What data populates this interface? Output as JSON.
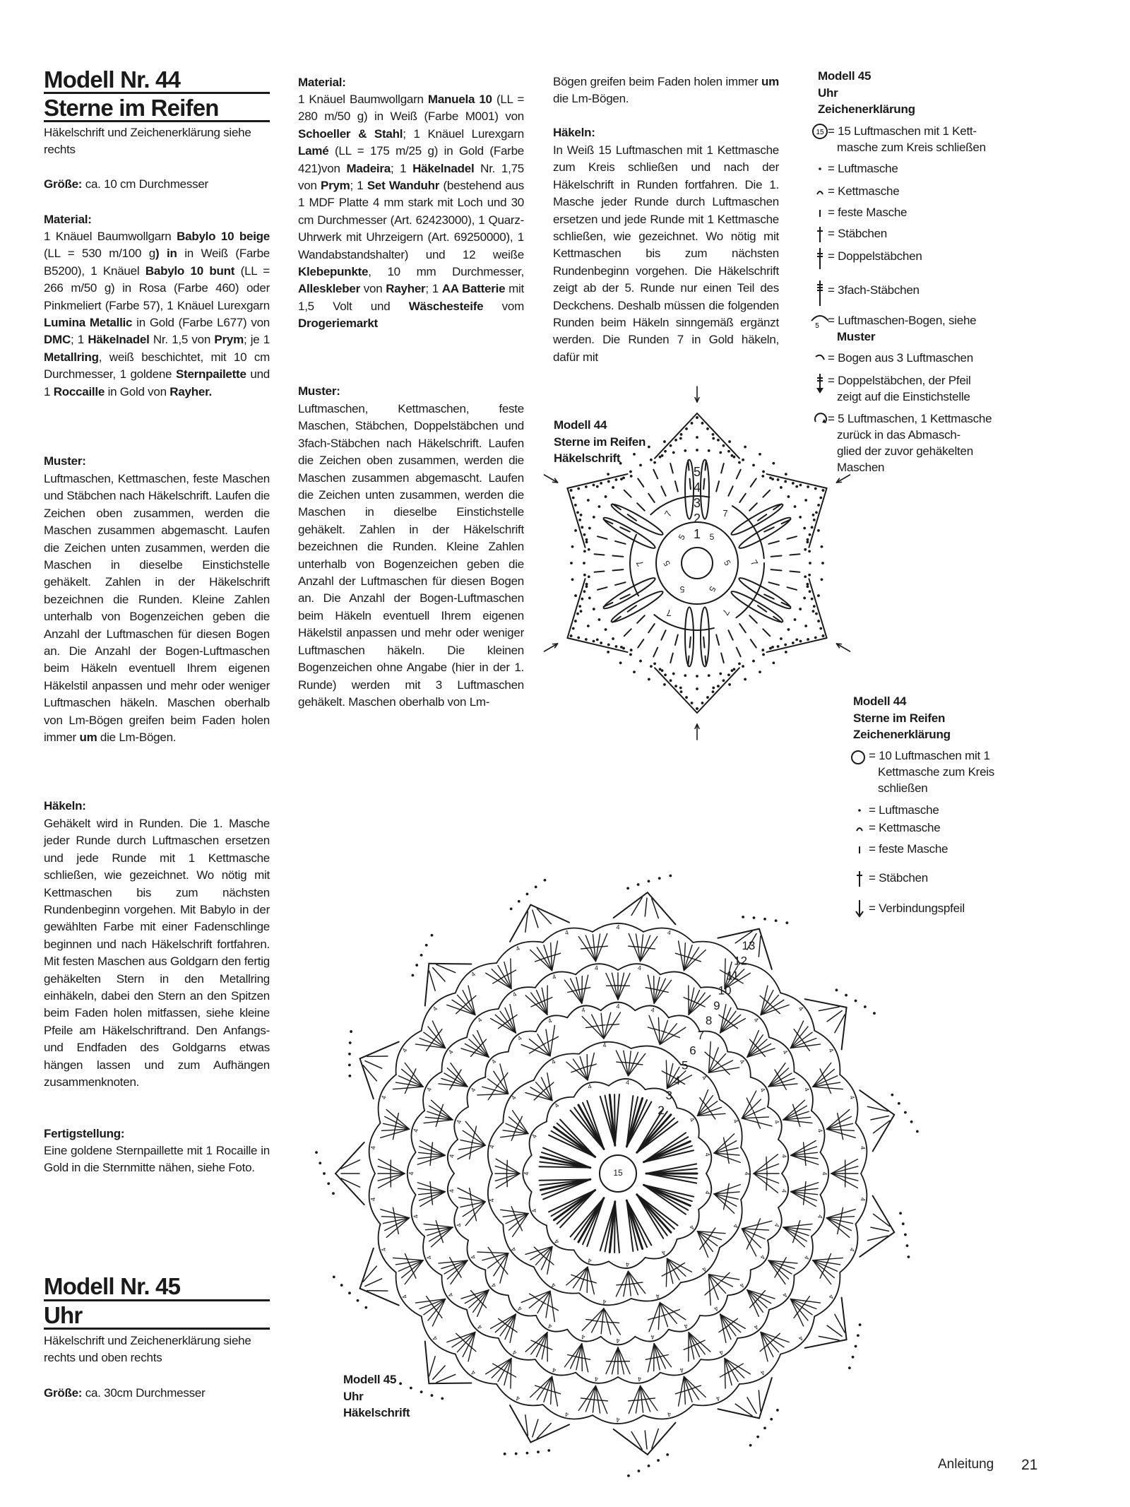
{
  "model44": {
    "title_number": "Modell Nr. 44",
    "title_name": "Sterne im Reifen",
    "intro": "Häkelschrift und Zeichenerklärung siehe rechts",
    "size_label": "Größe:",
    "size_value": " ca. 10 cm Durchmesser",
    "material_heading": "Material:",
    "material": [
      {
        "t": "1 Knäuel Baumwollgarn "
      },
      {
        "t": "Babylo 10 beige",
        "b": true
      },
      {
        "t": " (LL = 530 m/100 g"
      },
      {
        "t": ") in",
        "b": true
      },
      {
        "t": " in Weiß (Farbe B5200), 1 Knäuel "
      },
      {
        "t": "Babylo 10 bunt",
        "b": true
      },
      {
        "t": " (LL = 266 m/50 g) in Rosa (Farbe 460) oder Pinkmeliert (Farbe 57), 1 Knäuel Lurexgarn "
      },
      {
        "t": "Lumina Metallic",
        "b": true
      },
      {
        "t": " in Gold (Farbe L677) von "
      },
      {
        "t": "DMC",
        "b": true
      },
      {
        "t": "; 1 "
      },
      {
        "t": "Häkelnadel",
        "b": true
      },
      {
        "t": " Nr. 1,5 von "
      },
      {
        "t": "Prym",
        "b": true
      },
      {
        "t": "; je 1 "
      },
      {
        "t": "Metallring",
        "b": true
      },
      {
        "t": ", weiß beschichtet, mit 10 cm Durchmesser, 1 goldene "
      },
      {
        "t": "Sternpailette",
        "b": true
      },
      {
        "t": " und 1 "
      },
      {
        "t": "Roccaille",
        "b": true
      },
      {
        "t": " in Gold von "
      },
      {
        "t": "Rayher.",
        "b": true
      }
    ],
    "pattern_heading": "Muster:",
    "pattern": [
      {
        "t": "Luftmaschen, Kettmaschen, feste Maschen und Stäbchen nach Häkelschrift. Laufen die Zeichen oben zusammen, werden die Maschen zusammen abgemascht. Laufen die Zeichen unten zusammen, werden die Maschen in dieselbe Einstichstelle gehäkelt. Zahlen in der Häkelschrift bezeichnen die Runden. Kleine Zahlen unterhalb von Bogenzeichen geben die Anzahl der Luftmaschen für diesen Bogen an. Die Anzahl der Bogen-Luftmaschen beim Häkeln eventuell Ihrem eigenen Häkelstil anpassen und mehr oder weniger Luftmaschen häkeln. Maschen oberhalb von Lm-Bögen greifen beim Faden holen immer "
      },
      {
        "t": "um",
        "b": true
      },
      {
        "t": " die Lm-Bögen."
      }
    ],
    "crochet_heading": "Häkeln:",
    "crochet": [
      {
        "t": "Gehäkelt wird in Runden. Die 1. Masche jeder Runde durch Luftmaschen ersetzen und jede Runde mit 1 Kettmasche schließen, wie gezeichnet. Wo nötig mit Kettmaschen bis zum nächsten Rundenbeginn vorgehen. Mit Babylo in der gewählten Farbe mit einer Fadenschlinge beginnen und nach Häkelschrift fortfahren. Mit festen Maschen aus Goldgarn den fertig gehäkelten Stern in den Metallring einhäkeln, dabei den Stern an den Spitzen beim Faden holen mitfassen, siehe kleine Pfeile am Häkelschriftrand. Den Anfangs- und Endfaden des Goldgarns etwas hängen lassen und zum Aufhängen zusammenknoten."
      }
    ],
    "finishing_heading": "Fertigstellung:",
    "finishing": [
      {
        "t": "Eine goldene Sternpaillette mit 1 Rocaille in Gold in die Sternmitte nähen, siehe Foto."
      }
    ],
    "diagram_label": [
      "Modell 44",
      "Sterne im Reifen",
      "Häkelschrift"
    ],
    "diagram_round_labels": [
      "1",
      "2",
      "3",
      "4",
      "5"
    ],
    "diagram_arc_labels": [
      "5",
      "7"
    ],
    "legend_title": [
      "Modell 44",
      "Sterne im Reifen",
      "Zeichenerklärung"
    ],
    "legend": [
      {
        "icon": "ring-icon",
        "lines": [
          {
            "t": "= 10 Luftmaschen mit 1"
          },
          {
            "t": "Kettmasche zum Kreis"
          },
          {
            "t": "schließen"
          }
        ]
      },
      {
        "icon": "chain-dot-icon",
        "lines": [
          {
            "t": "= Luftmasche"
          }
        ]
      },
      {
        "icon": "slip-stitch-icon",
        "lines": [
          {
            "t": "= Kettmasche"
          }
        ]
      },
      {
        "icon": "single-crochet-icon",
        "lines": [
          {
            "t": "= feste Masche"
          }
        ]
      },
      {
        "icon": "double-crochet-icon",
        "lines": [
          {
            "t": "= Stäbchen"
          }
        ]
      },
      {
        "icon": "down-arrow-icon",
        "lines": [
          {
            "t": "= Verbindungspfeil"
          }
        ]
      }
    ]
  },
  "model45": {
    "title_number": "Modell Nr. 45",
    "title_name": "Uhr",
    "intro": "Häkelschrift und Zeichenerklärung siehe rechts und oben rechts",
    "size_label": "Größe:",
    "size_value": " ca. 30cm Durchmesser",
    "material_heading": "Material:",
    "material": [
      {
        "t": "1 Knäuel Baumwollgarn "
      },
      {
        "t": "Manuela 10",
        "b": true
      },
      {
        "t": " (LL = 280 m/50 g) in Weiß (Farbe M001) von "
      },
      {
        "t": "Schoeller & Stahl",
        "b": true
      },
      {
        "t": "; 1 Knäuel Lurexgarn "
      },
      {
        "t": "Lamé",
        "b": true
      },
      {
        "t": " (LL = 175 m/25 g) in Gold (Farbe 421)von "
      },
      {
        "t": "Madeira",
        "b": true
      },
      {
        "t": "; 1 "
      },
      {
        "t": "Häkelnadel",
        "b": true
      },
      {
        "t": " Nr. 1,75 von "
      },
      {
        "t": "Prym",
        "b": true
      },
      {
        "t": "; 1 "
      },
      {
        "t": "Set Wanduhr",
        "b": true
      },
      {
        "t": " (bestehend aus 1 MDF Platte 4 mm stark mit Loch und 30 cm Durchmesser (Art. 62423000), 1 Quarz-Uhrwerk mit Uhrzeigern (Art. 69250000), 1 Wandabstandshalter) und 12 weiße "
      },
      {
        "t": "Klebepunkte",
        "b": true
      },
      {
        "t": ", 10 mm Durchmesser, "
      },
      {
        "t": "Alleskleber",
        "b": true
      },
      {
        "t": " von "
      },
      {
        "t": "Rayher",
        "b": true
      },
      {
        "t": "; 1 "
      },
      {
        "t": "AA Batterie",
        "b": true
      },
      {
        "t": " mit 1,5 Volt und "
      },
      {
        "t": "Wäschesteife",
        "b": true
      },
      {
        "t": " vom "
      },
      {
        "t": "Drogeriemarkt",
        "b": true
      }
    ],
    "pattern_heading": "Muster:",
    "pattern": [
      {
        "t": "Luftmaschen, Kettmaschen, feste Maschen, Stäbchen, Doppelstäbchen und 3fach-Stäbchen nach Häkelschrift. Laufen die Zeichen oben zusammen, werden die Maschen zusammen abgemascht. Laufen die Zeichen unten zusammen, werden die Maschen in dieselbe Einstichstelle gehäkelt. Zahlen in der Häkelschrift bezeichnen die Runden. Kleine Zahlen unterhalb von Bogenzeichen geben die Anzahl der Luftmaschen für diesen Bogen an. Die Anzahl der Bogen-Luftmaschen beim Häkeln eventuell Ihrem eigenen Häkelstil anpassen und mehr oder weniger Luftmaschen häkeln. Die kleinen Bogenzeichen ohne Angabe (hier in der 1. Runde) werden mit 3 Luftmaschen gehäkelt. Maschen oberhalb von Lm-"
      }
    ],
    "pattern_continued": [
      {
        "t": "Bögen greifen beim Faden holen immer "
      },
      {
        "t": "um",
        "b": true
      },
      {
        "t": " die Lm-Bögen."
      }
    ],
    "crochet_heading": "Häkeln:",
    "crochet": [
      {
        "t": "In Weiß 15 Luftmaschen mit 1 Kettmasche zum Kreis schließen und nach der Häkelschrift in Runden fortfahren. Die 1. Masche jeder Runde durch Luftmaschen ersetzen und jede Runde mit 1 Kettmasche schließen, wie gezeichnet. Wo nötig mit Kettmaschen bis zum nächsten Rundenbeginn vorgehen. Die Häkelschrift zeigt ab der 5. Runde nur einen Teil des Deckchens. Deshalb müssen die folgenden Runden beim Häkeln sinngemäß ergänzt werden. Die Runden 7 in Gold häkeln, dafür mit"
      }
    ],
    "legend_title": [
      "Modell 45",
      "Uhr",
      "Zeichenerklärung"
    ],
    "legend": [
      {
        "icon": "ring-15-icon",
        "lines": [
          {
            "t": "= 15 Luftmaschen mit 1 Kett-"
          },
          {
            "t": "masche zum Kreis schließen"
          }
        ]
      },
      {
        "icon": "chain-dot-icon",
        "lines": [
          {
            "t": "= Luftmasche"
          }
        ]
      },
      {
        "icon": "slip-stitch-icon",
        "lines": [
          {
            "t": "= Kettmasche"
          }
        ]
      },
      {
        "icon": "single-crochet-icon",
        "lines": [
          {
            "t": "= feste Masche"
          }
        ]
      },
      {
        "icon": "double-crochet-icon",
        "lines": [
          {
            "t": "= Stäbchen"
          }
        ]
      },
      {
        "icon": "treble-crochet-icon",
        "lines": [
          {
            "t": "= Doppelstäbchen"
          }
        ]
      },
      {
        "icon": "triple-treble-icon",
        "lines": [
          {
            "t": "= 3fach-Stäbchen"
          }
        ]
      },
      {
        "icon": "chain-arch-icon",
        "lines": [
          {
            "t": "= Luftmaschen-Bogen, siehe"
          },
          {
            "t": "Muster",
            "b": true
          }
        ]
      },
      {
        "icon": "small-arch-icon",
        "lines": [
          {
            "t": "= Bogen aus 3 Luftmaschen"
          }
        ]
      },
      {
        "icon": "treble-arrow-icon",
        "lines": [
          {
            "t": "= Doppelstäbchen, der Pfeil"
          },
          {
            "t": "zeigt auf die Einstichstelle"
          }
        ]
      },
      {
        "icon": "picot-loop-icon",
        "lines": [
          {
            "t": "= 5 Luftmaschen, 1 Kettmasche"
          },
          {
            "t": "zurück in das Abmasch-"
          },
          {
            "t": "glied der zuvor gehäkelten"
          },
          {
            "t": "Maschen"
          }
        ]
      }
    ],
    "legend_arch_number": "5",
    "diagram_label": [
      "Modell 45",
      "Uhr",
      "Häkelschrift"
    ],
    "diagram_center_label": "15",
    "diagram_round_labels": [
      "2",
      "3",
      "4",
      "5",
      "6",
      "7",
      "8",
      "9",
      "10",
      "11",
      "12",
      "13"
    ],
    "diagram_arch_label": "4"
  },
  "footer": {
    "section": "Anleitung",
    "page_number": "21"
  }
}
